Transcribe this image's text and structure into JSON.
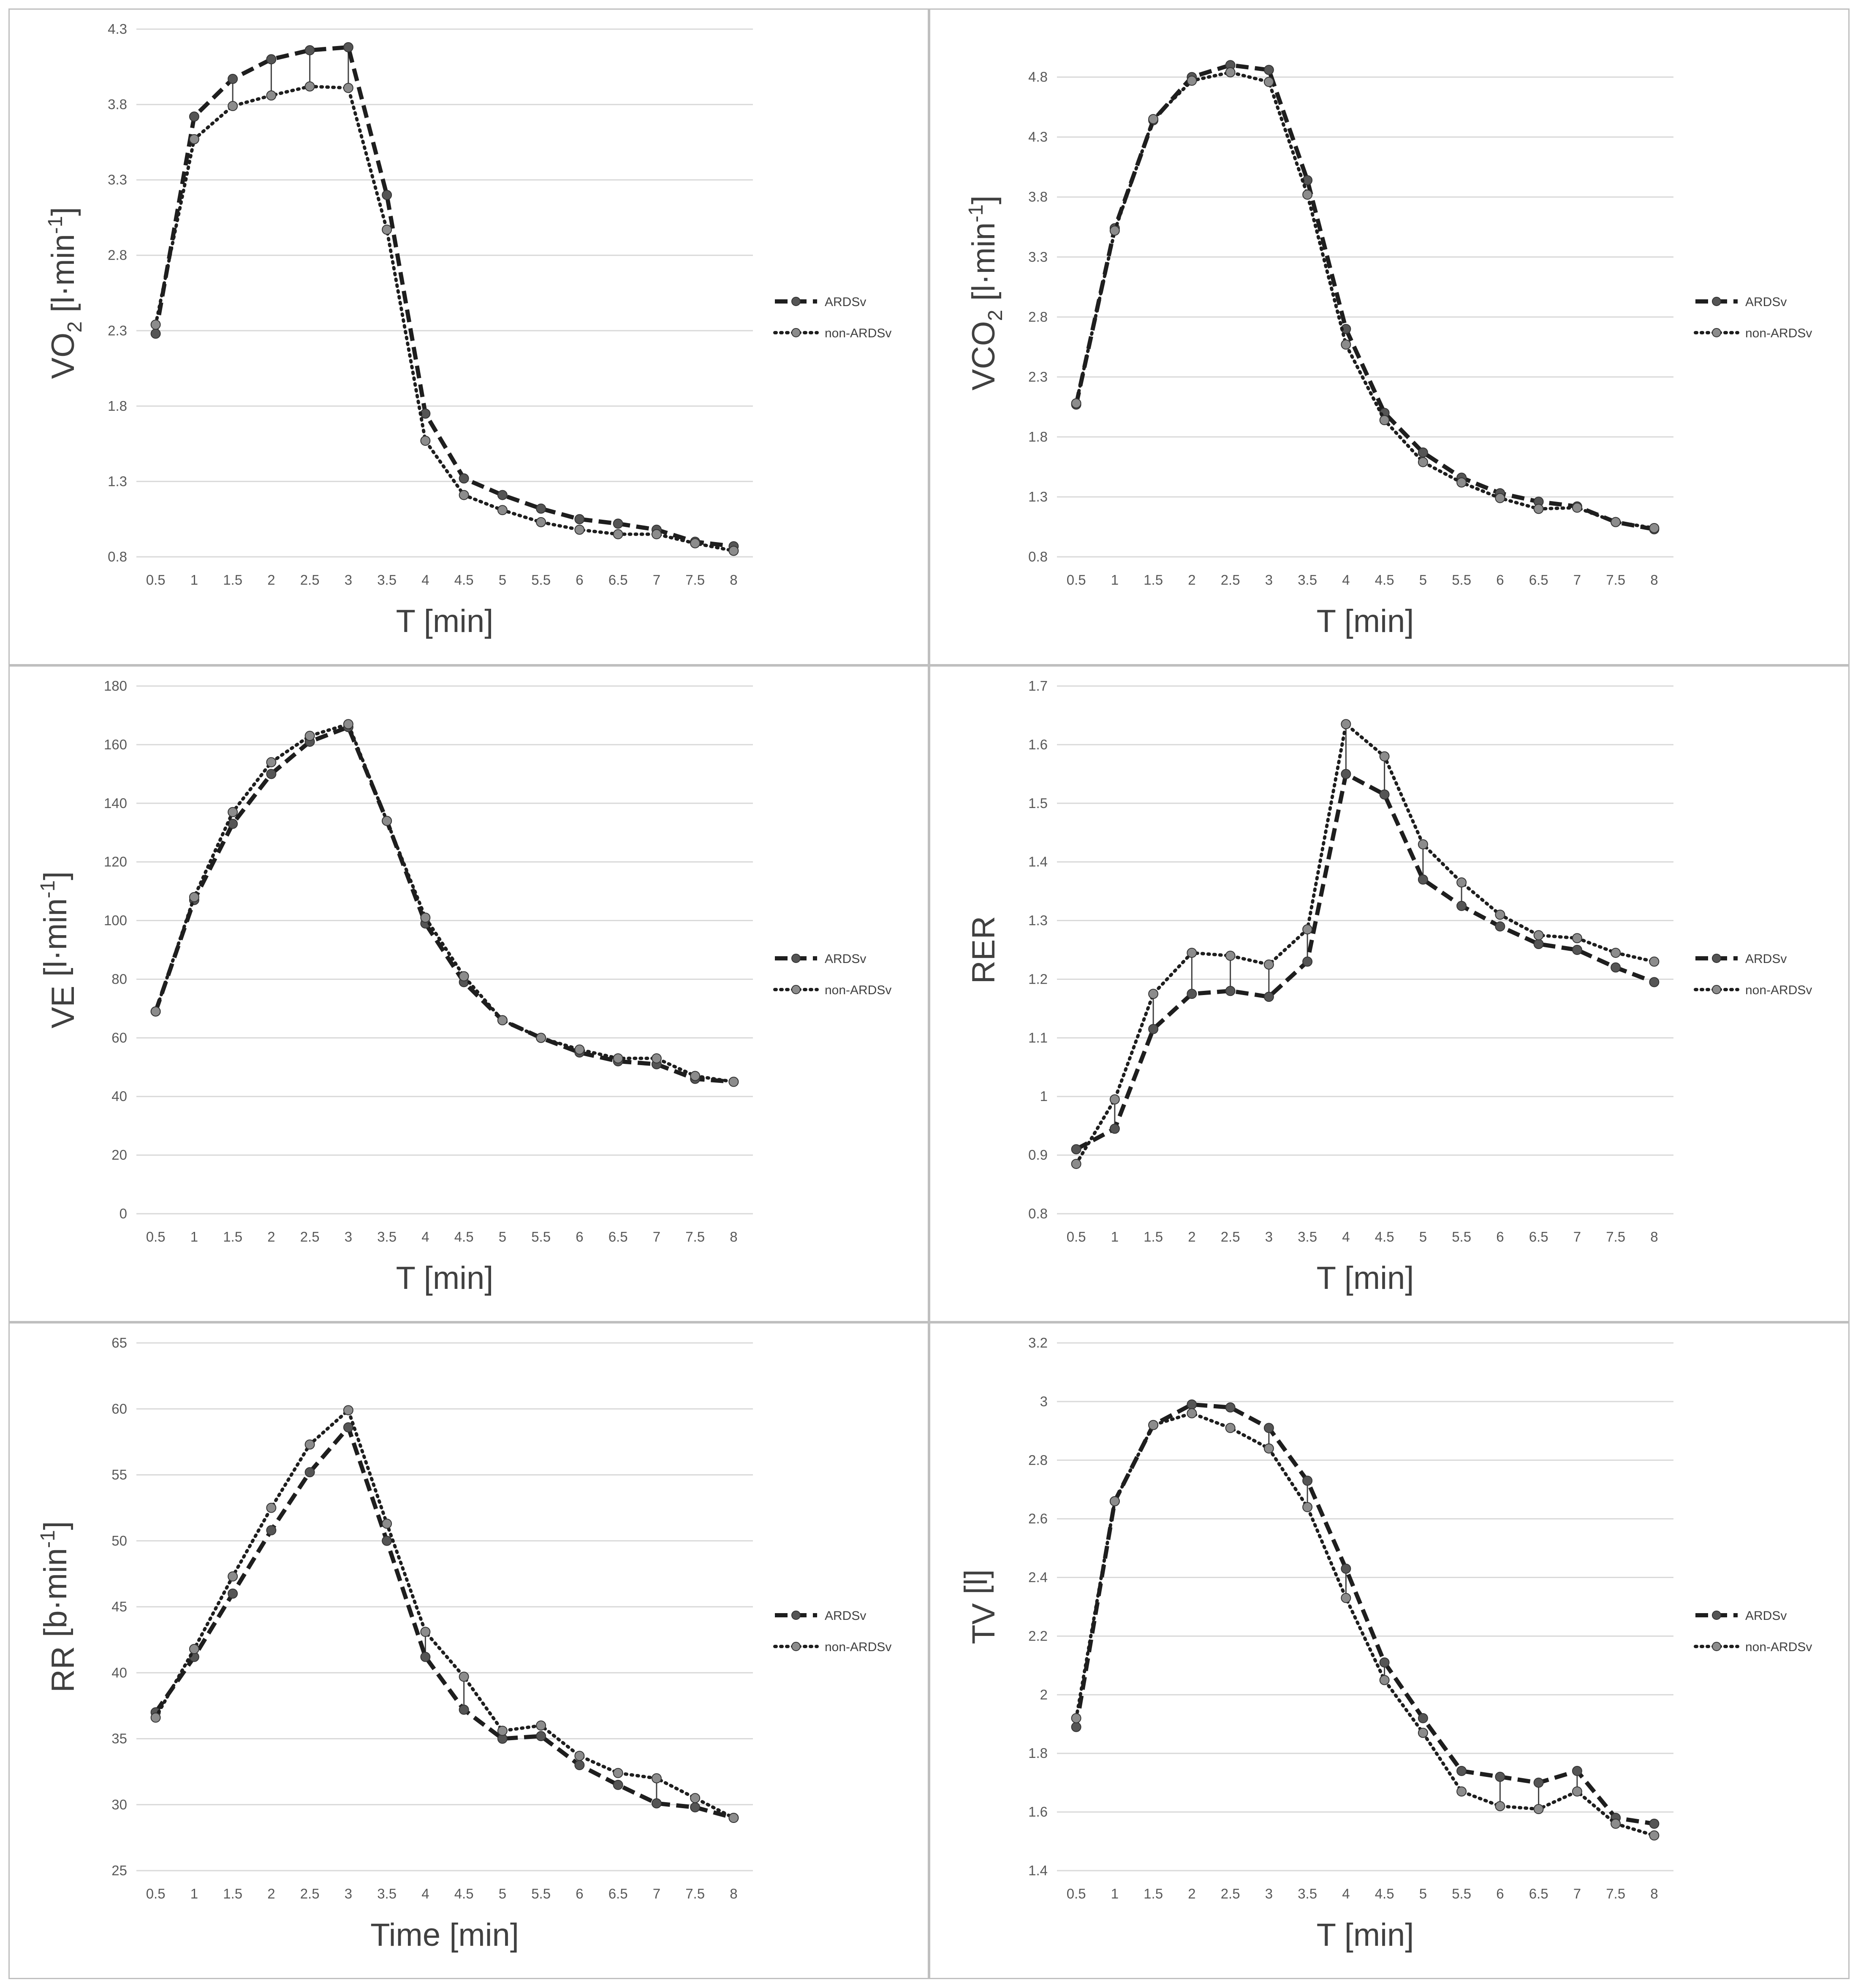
{
  "colors": {
    "ardsv": "#1e1e1e",
    "non_ardsv": "#1e1e1e",
    "marker_ardsv": "#555555",
    "marker_non": "#8c8c8c",
    "grid": "#d9d9d9",
    "connector": "#404040"
  },
  "legend": {
    "series_a": "ARDSv",
    "series_b": "non-ARDSv"
  },
  "chart_data": [
    {
      "id": "vo2",
      "type": "line",
      "ylabel": {
        "main": "VO",
        "sub": "2",
        "mid": " [l·min",
        "sup": "-1",
        "end": "]"
      },
      "xlabel": "T [min]",
      "x": [
        "0.5",
        "1",
        "1.5",
        "2",
        "2.5",
        "3",
        "3.5",
        "4",
        "4.5",
        "5",
        "5.5",
        "6",
        "6.5",
        "7",
        "7.5",
        "8"
      ],
      "yticks": [
        "0.8",
        "1.3",
        "1.8",
        "2.3",
        "2.8",
        "3.3",
        "3.8",
        "4.3"
      ],
      "ylim": [
        0.8,
        4.3
      ],
      "series": [
        {
          "name": "ARDSv",
          "values": [
            2.28,
            3.72,
            3.97,
            4.1,
            4.16,
            4.18,
            3.2,
            1.75,
            1.32,
            1.21,
            1.12,
            1.05,
            1.02,
            0.98,
            0.9,
            0.87
          ]
        },
        {
          "name": "non-ARDSv",
          "values": [
            2.34,
            3.57,
            3.79,
            3.86,
            3.92,
            3.91,
            2.97,
            1.57,
            1.21,
            1.11,
            1.03,
            0.98,
            0.95,
            0.95,
            0.89,
            0.84
          ]
        }
      ],
      "connectors": [
        2,
        3,
        4,
        5
      ]
    },
    {
      "id": "vco2",
      "type": "line",
      "ylabel": {
        "main": "VCO",
        "sub": "2",
        "mid": " [l·min",
        "sup": "-1",
        "end": "]"
      },
      "xlabel": "T [min]",
      "x": [
        "0.5",
        "1",
        "1.5",
        "2",
        "2.5",
        "3",
        "3.5",
        "4",
        "4.5",
        "5",
        "5.5",
        "6",
        "6.5",
        "7",
        "7.5",
        "8"
      ],
      "yticks": [
        "0.8",
        "1.3",
        "1.8",
        "2.3",
        "2.8",
        "3.3",
        "3.8",
        "4.3",
        "4.8"
      ],
      "ylim": [
        0.8,
        5.2
      ],
      "series": [
        {
          "name": "ARDSv",
          "values": [
            2.07,
            3.54,
            4.44,
            4.8,
            4.9,
            4.86,
            3.94,
            2.7,
            2.0,
            1.67,
            1.46,
            1.33,
            1.26,
            1.22,
            1.09,
            1.03
          ]
        },
        {
          "name": "non-ARDSv",
          "values": [
            2.08,
            3.52,
            4.45,
            4.77,
            4.84,
            4.76,
            3.82,
            2.57,
            1.94,
            1.59,
            1.42,
            1.29,
            1.2,
            1.21,
            1.09,
            1.04
          ]
        }
      ],
      "connectors": []
    },
    {
      "id": "ve",
      "type": "line",
      "ylabel": {
        "main": "VE",
        "sub": "",
        "mid": " [l·min",
        "sup": "-1",
        "end": "]"
      },
      "xlabel": "T [min]",
      "x": [
        "0.5",
        "1",
        "1.5",
        "2",
        "2.5",
        "3",
        "3.5",
        "4",
        "4.5",
        "5",
        "5.5",
        "6",
        "6.5",
        "7",
        "7.5",
        "8"
      ],
      "yticks": [
        "0",
        "20",
        "40",
        "60",
        "80",
        "100",
        "120",
        "140",
        "160",
        "180"
      ],
      "ylim": [
        0,
        180
      ],
      "series": [
        {
          "name": "ARDSv",
          "values": [
            69,
            107,
            133,
            150,
            161,
            166,
            134,
            99,
            79,
            66,
            60,
            55,
            52,
            51,
            46,
            45
          ]
        },
        {
          "name": "non-ARDSv",
          "values": [
            69,
            108,
            137,
            154,
            163,
            167,
            134,
            101,
            81,
            66,
            60,
            56,
            53,
            53,
            47,
            45
          ]
        }
      ],
      "connectors": []
    },
    {
      "id": "rer",
      "type": "line",
      "ylabel": {
        "main": "RER",
        "sub": "",
        "mid": "",
        "sup": "",
        "end": ""
      },
      "xlabel": "T [min]",
      "x": [
        "0.5",
        "1",
        "1.5",
        "2",
        "2.5",
        "3",
        "3.5",
        "4",
        "4.5",
        "5",
        "5.5",
        "6",
        "6.5",
        "7",
        "7.5",
        "8"
      ],
      "yticks": [
        "0.8",
        "0.9",
        "1",
        "1.1",
        "1.2",
        "1.3",
        "1.4",
        "1.5",
        "1.6",
        "1.7"
      ],
      "ylim": [
        0.8,
        1.7
      ],
      "series": [
        {
          "name": "ARDSv",
          "values": [
            0.91,
            0.945,
            1.115,
            1.175,
            1.18,
            1.17,
            1.23,
            1.55,
            1.515,
            1.37,
            1.325,
            1.29,
            1.26,
            1.25,
            1.22,
            1.195
          ]
        },
        {
          "name": "non-ARDSv",
          "values": [
            0.885,
            0.995,
            1.175,
            1.245,
            1.24,
            1.225,
            1.285,
            1.635,
            1.58,
            1.43,
            1.365,
            1.31,
            1.275,
            1.27,
            1.245,
            1.23
          ]
        }
      ],
      "connectors": [
        1,
        2,
        3,
        4,
        5,
        6,
        7,
        8,
        9,
        10
      ]
    },
    {
      "id": "rr",
      "type": "line",
      "ylabel": {
        "main": "RR",
        "sub": "",
        "mid": " [b·min",
        "sup": "-1",
        "end": "]"
      },
      "xlabel": "Time [min]",
      "x": [
        "0.5",
        "1",
        "1.5",
        "2",
        "2.5",
        "3",
        "3.5",
        "4",
        "4.5",
        "5",
        "5.5",
        "6",
        "6.5",
        "7",
        "7.5",
        "8"
      ],
      "yticks": [
        "25",
        "30",
        "35",
        "40",
        "45",
        "50",
        "55",
        "60",
        "65"
      ],
      "ylim": [
        25,
        65
      ],
      "series": [
        {
          "name": "ARDSv",
          "values": [
            37.0,
            41.2,
            46.0,
            50.8,
            55.2,
            58.6,
            50.0,
            41.2,
            37.2,
            35.0,
            35.2,
            33.0,
            31.5,
            30.1,
            29.8,
            29.0
          ]
        },
        {
          "name": "non-ARDSv",
          "values": [
            36.6,
            41.8,
            47.3,
            52.5,
            57.3,
            59.9,
            51.3,
            43.1,
            39.7,
            35.6,
            36.0,
            33.7,
            32.4,
            32.0,
            30.5,
            29.0
          ]
        }
      ],
      "connectors": [
        7,
        8,
        13
      ]
    },
    {
      "id": "tv",
      "type": "line",
      "ylabel": {
        "main": "TV",
        "sub": "",
        "mid": " [l]",
        "sup": "",
        "end": ""
      },
      "xlabel": "T [min]",
      "x": [
        "0.5",
        "1",
        "1.5",
        "2",
        "2.5",
        "3",
        "3.5",
        "4",
        "4.5",
        "5",
        "5.5",
        "6",
        "6.5",
        "7",
        "7.5",
        "8"
      ],
      "yticks": [
        "1.4",
        "1.6",
        "1.8",
        "2",
        "2.2",
        "2.4",
        "2.6",
        "2.8",
        "3",
        "3.2"
      ],
      "ylim": [
        1.4,
        3.2
      ],
      "series": [
        {
          "name": "ARDSv",
          "values": [
            1.89,
            2.66,
            2.92,
            2.99,
            2.98,
            2.91,
            2.73,
            2.43,
            2.11,
            1.92,
            1.74,
            1.72,
            1.7,
            1.74,
            1.58,
            1.56
          ]
        },
        {
          "name": "non-ARDSv",
          "values": [
            1.92,
            2.66,
            2.92,
            2.96,
            2.91,
            2.84,
            2.64,
            2.33,
            2.05,
            1.87,
            1.67,
            1.62,
            1.61,
            1.67,
            1.56,
            1.52
          ]
        }
      ],
      "connectors": [
        5,
        6,
        7,
        8,
        11,
        12,
        13
      ]
    }
  ]
}
